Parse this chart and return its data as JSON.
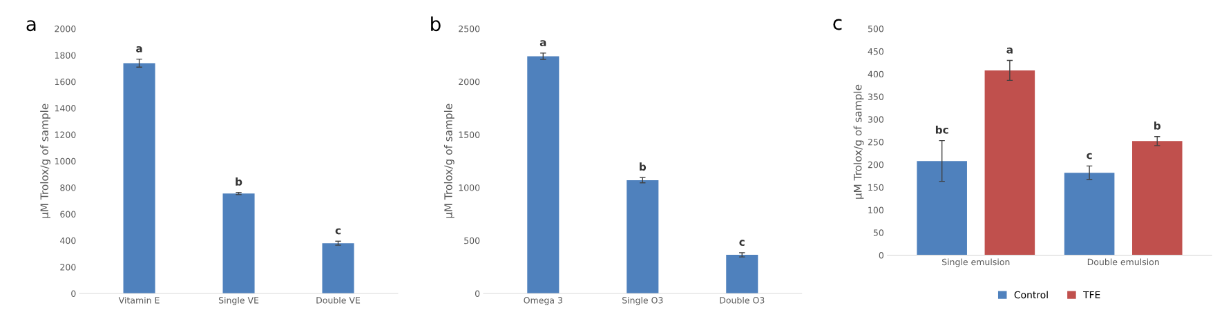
{
  "chart_data": [
    {
      "type": "bar",
      "title": "a",
      "ylabel": "µM Trolox/g of sample",
      "categories": [
        "Vitamin E",
        "Single VE",
        "Double VE"
      ],
      "ylim": [
        0,
        2000
      ],
      "yticks": [
        0,
        200,
        400,
        600,
        800,
        1000,
        1200,
        1400,
        1600,
        1800,
        2000
      ],
      "grid": false,
      "legend": false,
      "series": [
        {
          "color": "#4f81bd",
          "values": [
            1740,
            755,
            380
          ],
          "errors": [
            30,
            8,
            15
          ],
          "value_labels": [
            "a",
            "b",
            "c"
          ]
        }
      ]
    },
    {
      "type": "bar",
      "title": "b",
      "ylabel": "µM Trolox/g of sample",
      "categories": [
        "Omega 3",
        "Single O3",
        "Double O3"
      ],
      "ylim": [
        0,
        2500
      ],
      "yticks": [
        0,
        500,
        1000,
        1500,
        2000,
        2500
      ],
      "grid": false,
      "legend": false,
      "series": [
        {
          "color": "#4f81bd",
          "values": [
            2240,
            1070,
            365
          ],
          "errors": [
            30,
            25,
            20
          ],
          "value_labels": [
            "a",
            "b",
            "c"
          ]
        }
      ]
    },
    {
      "type": "bar",
      "title": "c",
      "ylabel": "µM Trolox/g of sample",
      "categories": [
        "Single emulsion",
        "Double emulsion"
      ],
      "ylim": [
        0,
        500
      ],
      "yticks": [
        0,
        50,
        100,
        150,
        200,
        250,
        300,
        350,
        400,
        450,
        500
      ],
      "grid": false,
      "legend": "bottom",
      "series": [
        {
          "name": "Control",
          "color": "#4f81bd",
          "values": [
            208,
            182
          ],
          "errors": [
            45,
            15
          ],
          "value_labels": [
            "bc",
            "c"
          ]
        },
        {
          "name": "TFE",
          "color": "#c0504d",
          "values": [
            408,
            252
          ],
          "errors": [
            22,
            10
          ],
          "value_labels": [
            "a",
            "b"
          ]
        }
      ]
    }
  ]
}
